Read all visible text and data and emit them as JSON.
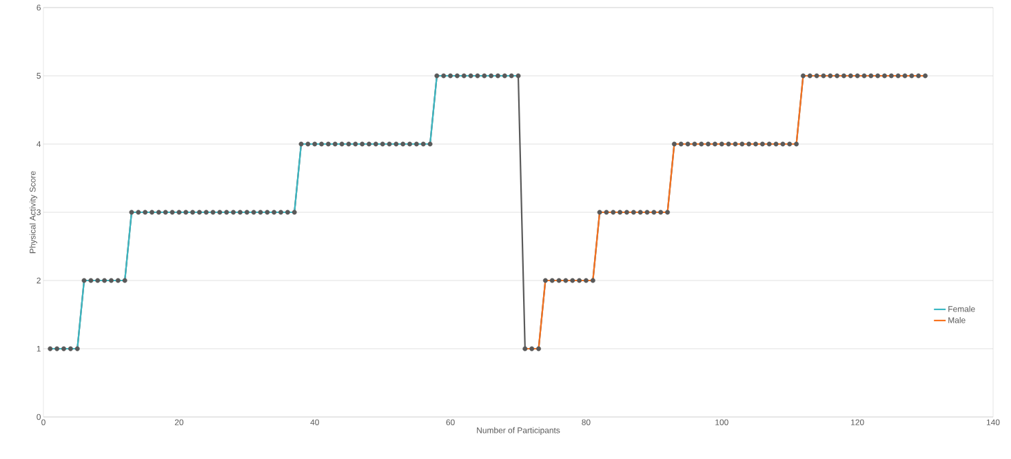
{
  "chart_data": {
    "type": "line",
    "xlabel": "Number of Participants",
    "ylabel": "Physical Activity Score",
    "x": [
      1,
      2,
      3,
      4,
      5,
      6,
      7,
      8,
      9,
      10,
      11,
      12,
      13,
      14,
      15,
      16,
      17,
      18,
      19,
      20,
      21,
      22,
      23,
      24,
      25,
      26,
      27,
      28,
      29,
      30,
      31,
      32,
      33,
      34,
      35,
      36,
      37,
      38,
      39,
      40,
      41,
      42,
      43,
      44,
      45,
      46,
      47,
      48,
      49,
      50,
      51,
      52,
      53,
      54,
      55,
      56,
      57,
      58,
      59,
      60,
      61,
      62,
      63,
      64,
      65,
      66,
      67,
      68,
      69,
      70,
      71,
      72,
      73,
      74,
      75,
      76,
      77,
      78,
      79,
      80,
      81,
      82,
      83,
      84,
      85,
      86,
      87,
      88,
      89,
      90,
      91,
      92,
      93,
      94,
      95,
      96,
      97,
      98,
      99,
      100,
      101,
      102,
      103,
      104,
      105,
      106,
      107,
      108,
      109,
      110,
      111,
      112,
      113,
      114,
      115,
      116,
      117,
      118,
      119,
      120,
      121,
      122,
      123,
      124,
      125,
      126,
      127,
      128,
      129,
      130
    ],
    "series": [
      {
        "color": "#595959",
        "marker": "circle",
        "values": [
          1,
          1,
          1,
          1,
          1,
          2,
          2,
          2,
          2,
          2,
          2,
          2,
          3,
          3,
          3,
          3,
          3,
          3,
          3,
          3,
          3,
          3,
          3,
          3,
          3,
          3,
          3,
          3,
          3,
          3,
          3,
          3,
          3,
          3,
          3,
          3,
          3,
          4,
          4,
          4,
          4,
          4,
          4,
          4,
          4,
          4,
          4,
          4,
          4,
          4,
          4,
          4,
          4,
          4,
          4,
          4,
          4,
          5,
          5,
          5,
          5,
          5,
          5,
          5,
          5,
          5,
          5,
          5,
          5,
          5,
          1,
          1,
          1,
          2,
          2,
          2,
          2,
          2,
          2,
          2,
          2,
          3,
          3,
          3,
          3,
          3,
          3,
          3,
          3,
          3,
          3,
          3,
          4,
          4,
          4,
          4,
          4,
          4,
          4,
          4,
          4,
          4,
          4,
          4,
          4,
          4,
          4,
          4,
          4,
          4,
          4,
          5,
          5,
          5,
          5,
          5,
          5,
          5,
          5,
          5,
          5,
          5,
          5,
          5,
          5,
          5,
          5,
          5,
          5,
          5
        ]
      },
      {
        "name": "Female",
        "color": "#3cb9c4",
        "x": [
          1,
          2,
          3,
          4,
          5,
          6,
          7,
          8,
          9,
          10,
          11,
          12,
          13,
          14,
          15,
          16,
          17,
          18,
          19,
          20,
          21,
          22,
          23,
          24,
          25,
          26,
          27,
          28,
          29,
          30,
          31,
          32,
          33,
          34,
          35,
          36,
          37,
          38,
          39,
          40,
          41,
          42,
          43,
          44,
          45,
          46,
          47,
          48,
          49,
          50,
          51,
          52,
          53,
          54,
          55,
          56,
          57,
          58,
          59,
          60,
          61,
          62,
          63,
          64,
          65,
          66,
          67,
          68,
          69,
          70
        ],
        "values": [
          1,
          1,
          1,
          1,
          1,
          2,
          2,
          2,
          2,
          2,
          2,
          2,
          3,
          3,
          3,
          3,
          3,
          3,
          3,
          3,
          3,
          3,
          3,
          3,
          3,
          3,
          3,
          3,
          3,
          3,
          3,
          3,
          3,
          3,
          3,
          3,
          3,
          4,
          4,
          4,
          4,
          4,
          4,
          4,
          4,
          4,
          4,
          4,
          4,
          4,
          4,
          4,
          4,
          4,
          4,
          4,
          4,
          5,
          5,
          5,
          5,
          5,
          5,
          5,
          5,
          5,
          5,
          5,
          5,
          5
        ]
      },
      {
        "name": "Male",
        "color": "#f8731f",
        "x": [
          71,
          72,
          73,
          74,
          75,
          76,
          77,
          78,
          79,
          80,
          81,
          82,
          83,
          84,
          85,
          86,
          87,
          88,
          89,
          90,
          91,
          92,
          93,
          94,
          95,
          96,
          97,
          98,
          99,
          100,
          101,
          102,
          103,
          104,
          105,
          106,
          107,
          108,
          109,
          110,
          111,
          112,
          113,
          114,
          115,
          116,
          117,
          118,
          119,
          120,
          121,
          122,
          123,
          124,
          125,
          126,
          127,
          128,
          129,
          130
        ],
        "values": [
          1,
          1,
          1,
          2,
          2,
          2,
          2,
          2,
          2,
          2,
          2,
          3,
          3,
          3,
          3,
          3,
          3,
          3,
          3,
          3,
          3,
          3,
          4,
          4,
          4,
          4,
          4,
          4,
          4,
          4,
          4,
          4,
          4,
          4,
          4,
          4,
          4,
          4,
          4,
          4,
          4,
          5,
          5,
          5,
          5,
          5,
          5,
          5,
          5,
          5,
          5,
          5,
          5,
          5,
          5,
          5,
          5,
          5,
          5,
          5
        ]
      }
    ],
    "xlim": [
      0,
      140
    ],
    "xticks": [
      0,
      20,
      40,
      60,
      80,
      100,
      120,
      140
    ],
    "ylim": [
      0,
      6
    ],
    "yticks": [
      0,
      1,
      2,
      3,
      4,
      5,
      6
    ],
    "grid": "y",
    "legend": "bottom right",
    "line_style": "solid"
  }
}
